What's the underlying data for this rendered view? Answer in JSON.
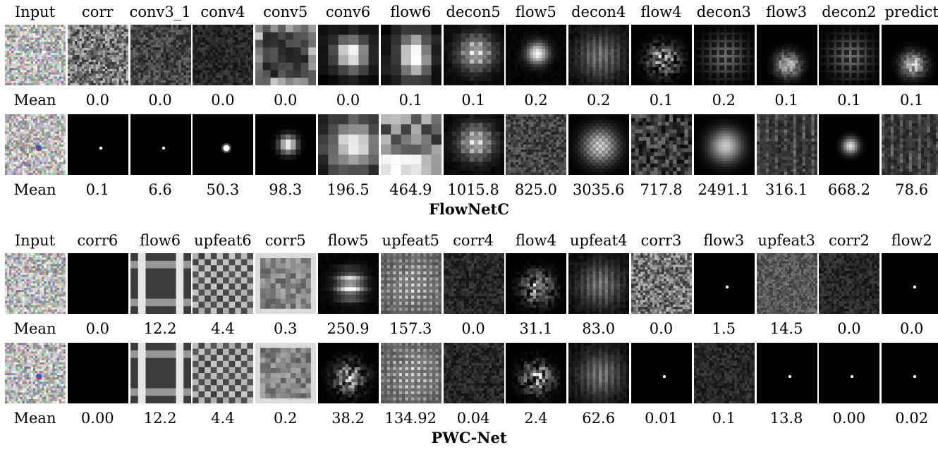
{
  "flownetc": {
    "caption": "FlowNetC",
    "row_label": "Mean",
    "headers": [
      "Input",
      "corr",
      "conv3_1",
      "conv4",
      "conv5",
      "conv6",
      "flow6",
      "decon5",
      "flow5",
      "decon4",
      "flow4",
      "decon3",
      "flow3",
      "decon2",
      "predict"
    ],
    "means_a": [
      "0.0",
      "0.0",
      "0.0",
      "0.0",
      "0.0",
      "0.1",
      "0.1",
      "0.2",
      "0.2",
      "0.1",
      "0.2",
      "0.1",
      "0.1",
      "0.1"
    ],
    "means_b": [
      "0.1",
      "6.6",
      "50.3",
      "98.3",
      "196.5",
      "464.9",
      "1015.8",
      "825.0",
      "3035.6",
      "717.8",
      "2491.1",
      "316.1",
      "668.2",
      "78.6"
    ],
    "tiles_a": [
      "noise",
      "noise-bright",
      "noise-dim",
      "noise-dark",
      "blocky-edges",
      "blob-coarse",
      "blob-tall",
      "grid-blob",
      "blob-small",
      "grid-faint",
      "blob-patchy",
      "grid-dark",
      "blob-low",
      "grid-dark",
      "blob-low"
    ],
    "tiles_b": [
      "noise-dot",
      "dot-tiny",
      "dot-tiny",
      "dot-small",
      "dot-medium",
      "blocky-blob",
      "blocky-mixed",
      "grid-blob",
      "noise-dim",
      "grid-glow",
      "noise-patchy",
      "glow",
      "noise-streaks",
      "glow-small",
      "noise-streaks"
    ]
  },
  "pwcnet": {
    "caption": "PWC-Net",
    "row_label": "Mean",
    "headers": [
      "Input",
      "corr6",
      "flow6",
      "upfeat6",
      "corr5",
      "flow5",
      "upfeat5",
      "corr4",
      "flow4",
      "upfeat4",
      "corr3",
      "flow3",
      "upfeat3",
      "corr2",
      "flow2"
    ],
    "means_a": [
      "0.0",
      "12.2",
      "4.4",
      "0.3",
      "250.9",
      "157.3",
      "0.0",
      "31.1",
      "83.0",
      "0.0",
      "1.5",
      "14.5",
      "0.0",
      "0.0"
    ],
    "means_b": [
      "0.00",
      "12.2",
      "4.4",
      "0.2",
      "38.2",
      "134.92",
      "0.04",
      "2.4",
      "62.6",
      "0.01",
      "0.1",
      "13.8",
      "0.00",
      "0.02"
    ],
    "tiles_a": [
      "noise",
      "black",
      "frame-bars",
      "checker",
      "frame-grey",
      "cross",
      "grid-bright",
      "noise-dark",
      "blob-patchy",
      "grid-faint",
      "noise-bright",
      "dot-tiny",
      "noise-grey",
      "noise-dark",
      "dot-tiny"
    ],
    "tiles_b": [
      "noise-dot",
      "black",
      "frame-bars",
      "checker",
      "frame-grey",
      "blob-patchy",
      "grid-bright",
      "noise-dark",
      "blob-patchy",
      "grid-faint",
      "dot-tiny",
      "noise-dark",
      "dot-tiny",
      "dot-tiny",
      "dot-tiny"
    ]
  }
}
